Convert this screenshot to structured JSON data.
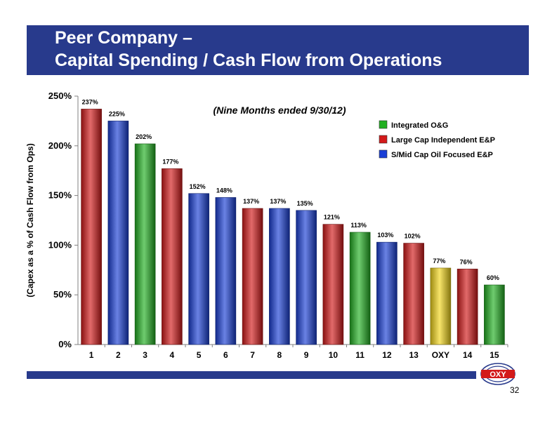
{
  "slide": {
    "title_line1": "Peer Company –",
    "title_line2": "Capital Spending / Cash Flow from Operations",
    "page_number": "32",
    "logo_text": "OXY"
  },
  "colors": {
    "title_bar": "#283a8c",
    "integrated": "#22b022",
    "large_cap": "#d31a1a",
    "smid_cap": "#1a3fd6",
    "oxy": "#f2d51a"
  },
  "chart_data": {
    "type": "bar",
    "subtitle": "(Nine Months ended 9/30/12)",
    "ylabel": "(Capex as a % of  Cash Flow from Ops)",
    "xlabel": "",
    "ylim": [
      0,
      250
    ],
    "yticks": [
      0,
      50,
      100,
      150,
      200,
      250
    ],
    "ytick_labels": [
      "0%",
      "50%",
      "100%",
      "150%",
      "200%",
      "250%"
    ],
    "grid": false,
    "legend_position": "top-right",
    "legend": [
      {
        "key": "integrated",
        "label": "Integrated O&G"
      },
      {
        "key": "large_cap",
        "label": "Large Cap Independent E&P"
      },
      {
        "key": "smid_cap",
        "label": "S/Mid Cap Oil Focused E&P"
      }
    ],
    "categories": [
      "1",
      "2",
      "3",
      "4",
      "5",
      "6",
      "7",
      "8",
      "9",
      "10",
      "11",
      "12",
      "13",
      "OXY",
      "14",
      "15"
    ],
    "values": [
      237,
      225,
      202,
      177,
      152,
      148,
      137,
      137,
      135,
      121,
      113,
      103,
      102,
      77,
      76,
      60
    ],
    "value_labels": [
      "237%",
      "225%",
      "202%",
      "177%",
      "152%",
      "148%",
      "137%",
      "137%",
      "135%",
      "121%",
      "113%",
      "103%",
      "102%",
      "77%",
      "76%",
      "60%"
    ],
    "groups": [
      "large_cap",
      "smid_cap",
      "integrated",
      "large_cap",
      "smid_cap",
      "smid_cap",
      "large_cap",
      "smid_cap",
      "smid_cap",
      "large_cap",
      "integrated",
      "smid_cap",
      "large_cap",
      "oxy",
      "large_cap",
      "integrated"
    ]
  }
}
